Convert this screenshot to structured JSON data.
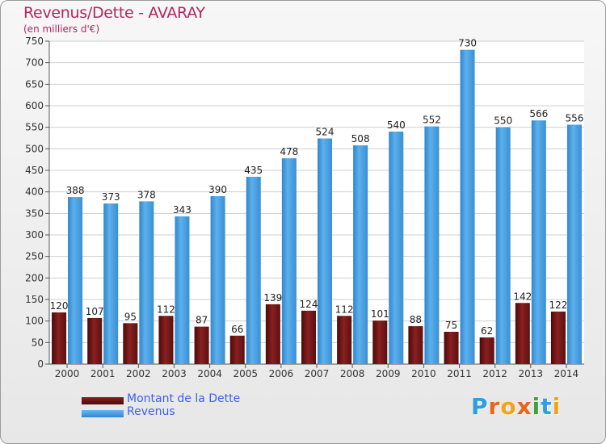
{
  "header": {
    "title": "Revenus/Dette - AVARAY",
    "subtitle": "(en milliers d'€)"
  },
  "legend": {
    "dette_label": "Montant de la Dette",
    "revenus_label": "Revenus"
  },
  "logo": {
    "text": "Proxiti",
    "letters": [
      "P",
      "r",
      "o",
      "x",
      "i",
      "t",
      "i"
    ],
    "letter_colors": [
      "#2e9fe0",
      "#e8651a",
      "#f2a31c",
      "#e8651a",
      "#3aa63a",
      "#2e9fe0",
      "#f2a31c"
    ]
  },
  "colors": {
    "dette": "#7a1a1a",
    "revenus": "#4ea3e2",
    "title": "#b5255f",
    "legend_text": "#3d5ef0"
  },
  "chart_data": {
    "type": "bar",
    "categories": [
      "2000",
      "2001",
      "2002",
      "2003",
      "2004",
      "2005",
      "2006",
      "2007",
      "2008",
      "2009",
      "2010",
      "2011",
      "2012",
      "2013",
      "2014"
    ],
    "series": [
      {
        "name": "Montant de la Dette",
        "values": [
          120,
          107,
          95,
          112,
          87,
          66,
          139,
          124,
          112,
          101,
          88,
          75,
          62,
          142,
          122
        ]
      },
      {
        "name": "Revenus",
        "values": [
          388,
          373,
          378,
          343,
          390,
          435,
          478,
          524,
          508,
          540,
          552,
          730,
          550,
          566,
          556
        ]
      }
    ],
    "yticks": [
      0,
      50,
      100,
      150,
      200,
      250,
      300,
      350,
      400,
      450,
      500,
      550,
      600,
      650,
      700,
      750
    ],
    "ylim": [
      0,
      750
    ],
    "grid": true,
    "title": "Revenus/Dette - AVARAY",
    "ylabel": "(en milliers d'€)",
    "legend_position": "bottom-left"
  }
}
